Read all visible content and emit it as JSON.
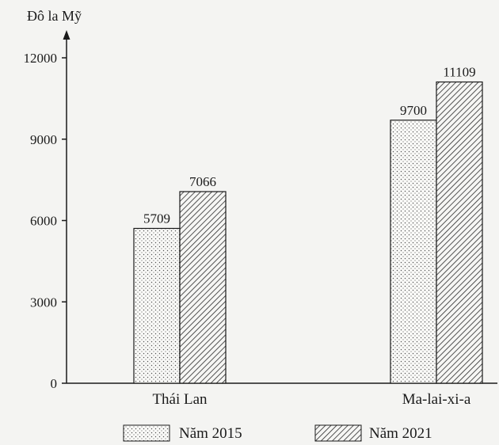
{
  "chart_data": {
    "type": "bar",
    "title": "",
    "ylabel": "Đô la Mỹ",
    "xlabel": "",
    "categories": [
      "Thái Lan",
      "Ma-lai-xi-a"
    ],
    "series": [
      {
        "name": "Năm 2015",
        "values": [
          5709,
          9700
        ],
        "pattern": "dots"
      },
      {
        "name": "Năm 2021",
        "values": [
          7066,
          11109
        ],
        "pattern": "hatch"
      }
    ],
    "yticks": [
      0,
      3000,
      6000,
      9000,
      12000
    ],
    "ylim": [
      0,
      12000
    ],
    "grid": false,
    "legend_position": "bottom"
  }
}
